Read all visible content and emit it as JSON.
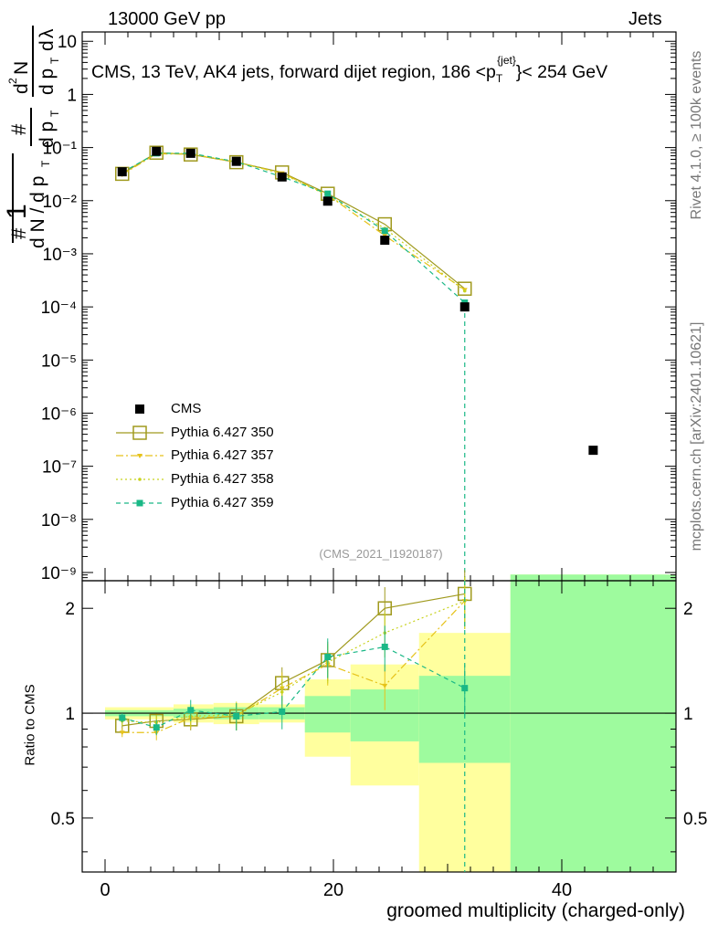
{
  "header": {
    "left": "13000 GeV pp",
    "right": "Jets"
  },
  "title_line": "CMS, 13 TeV, AK4 jets, forward dijet region, 186 <p",
  "title_sup": "{jet}",
  "title_sub": "T",
  "title_end": "}< 254 GeV",
  "side_labels": {
    "rivet": "Rivet 4.1.0, ≥ 100k events",
    "mcplots": "mcplots.cern.ch [arXiv:2401.10621]"
  },
  "analysis_tag": "(CMS_2021_I1920187)",
  "chart_data": {
    "type": "scatter",
    "xlabel": "groomed multiplicity (charged-only)",
    "ylabel_main": "1/N dN/dp_T dN/dp_T d²N/(dp_T dλ)",
    "ylabel_ratio": "Ratio to CMS",
    "xlim": [
      -2,
      50
    ],
    "xticks": [
      0,
      20,
      40
    ],
    "ylim_main": [
      7e-10,
      15
    ],
    "ylim_ratio": [
      0.35,
      2.4
    ],
    "main_yticks": [
      {
        "value": 10,
        "label": "10"
      },
      {
        "value": 1,
        "label": "1"
      },
      {
        "value": 0.1,
        "label": "10⁻¹"
      },
      {
        "value": 0.01,
        "label": "10⁻²"
      },
      {
        "value": 0.001,
        "label": "10⁻³"
      },
      {
        "value": 0.0001,
        "label": "10⁻⁴"
      },
      {
        "value": 1e-05,
        "label": "10⁻⁵"
      },
      {
        "value": 1e-06,
        "label": "10⁻⁶"
      },
      {
        "value": 1e-07,
        "label": "10⁻⁷"
      },
      {
        "value": 1e-08,
        "label": "10⁻⁸"
      },
      {
        "value": 1e-09,
        "label": "10⁻⁹"
      }
    ],
    "ratio_yticks": [
      {
        "value": 0.5,
        "label": "0.5"
      },
      {
        "value": 1,
        "label": "1"
      },
      {
        "value": 2,
        "label": "2"
      }
    ],
    "bins": [
      [
        0,
        3
      ],
      [
        3,
        6
      ],
      [
        6,
        9.5
      ],
      [
        9.5,
        13.5
      ],
      [
        13.5,
        17.5
      ],
      [
        17.5,
        21.5
      ],
      [
        21.5,
        27.5
      ],
      [
        27.5,
        35.5
      ],
      [
        35.5,
        50
      ]
    ],
    "cms": {
      "name": "CMS",
      "x": [
        1.5,
        4.5,
        7.5,
        11.5,
        15.5,
        19.5,
        24.5,
        31.5,
        42.75
      ],
      "y": [
        0.035,
        0.085,
        0.078,
        0.055,
        0.028,
        0.0098,
        0.0018,
        0.0001,
        2e-07
      ],
      "band_stat": [
        0.02,
        0.02,
        0.03,
        0.04,
        0.04,
        0.12,
        0.17,
        0.28,
        1.5
      ],
      "band_tot": [
        0.04,
        0.04,
        0.06,
        0.07,
        0.06,
        0.25,
        0.38,
        0.7,
        1.5
      ]
    },
    "series": [
      {
        "name": "Pythia 6.427 350",
        "color": "#a09a1e",
        "style": "solid",
        "marker": "open-square",
        "x": [
          1.5,
          4.5,
          7.5,
          11.5,
          15.5,
          19.5,
          24.5,
          31.5
        ],
        "y": [
          0.032,
          0.08,
          0.074,
          0.053,
          0.034,
          0.0135,
          0.0036,
          0.00022
        ],
        "ratio": [
          0.92,
          0.95,
          0.96,
          0.98,
          1.22,
          1.42,
          2.0,
          2.2
        ]
      },
      {
        "name": "Pythia 6.427 357",
        "color": "#e6c21a",
        "style": "dashdot",
        "marker": "small-triangle",
        "x": [
          1.5,
          4.5,
          7.5,
          11.5,
          15.5,
          19.5,
          24.5,
          31.5
        ],
        "y": [
          0.031,
          0.076,
          0.075,
          0.053,
          0.033,
          0.0128,
          0.0022,
          0.00021
        ],
        "ratio": [
          0.88,
          0.88,
          0.97,
          0.98,
          1.18,
          1.38,
          1.2,
          2.1
        ]
      },
      {
        "name": "Pythia 6.427 358",
        "color": "#c8d21e",
        "style": "dotted",
        "marker": "dot",
        "x": [
          1.5,
          4.5,
          7.5,
          11.5,
          15.5,
          19.5,
          24.5,
          31.5
        ],
        "y": [
          0.033,
          0.08,
          0.076,
          0.054,
          0.032,
          0.0125,
          0.003,
          0.0002
        ],
        "ratio": [
          0.95,
          0.94,
          0.98,
          0.99,
          1.15,
          1.4,
          1.7,
          2.1
        ]
      },
      {
        "name": "Pythia 6.427 359",
        "color": "#1ab886",
        "style": "dashed",
        "marker": "filled-square",
        "x": [
          1.5,
          4.5,
          7.5,
          11.5,
          15.5,
          19.5,
          24.5,
          31.5
        ],
        "y": [
          0.034,
          0.078,
          0.078,
          0.054,
          0.028,
          0.0135,
          0.0027,
          0.00012
        ],
        "ratio": [
          0.97,
          0.91,
          1.02,
          0.98,
          1.01,
          1.45,
          1.55,
          1.18
        ]
      }
    ],
    "legend_position": "lower-left"
  }
}
